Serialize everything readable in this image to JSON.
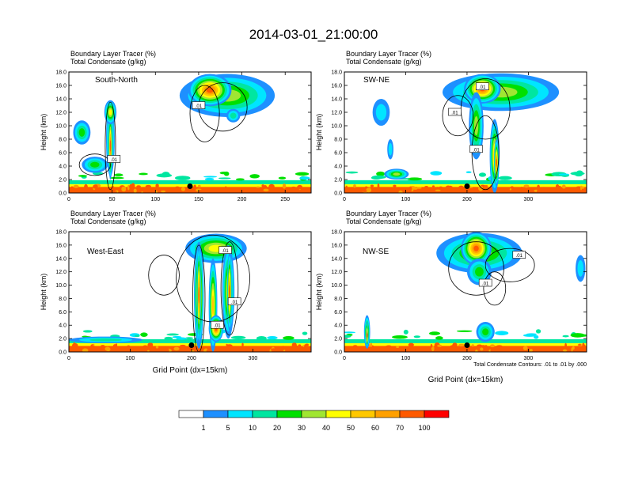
{
  "title": "2014-03-01_21:00:00",
  "legend": {
    "colors": [
      "#ffffff",
      "#1e90ff",
      "#00e5ff",
      "#00e6a0",
      "#00e000",
      "#a0e632",
      "#ffff00",
      "#ffc800",
      "#ffa000",
      "#ff5a00",
      "#ff0000"
    ],
    "labels": [
      "1",
      "5",
      "10",
      "20",
      "30",
      "40",
      "50",
      "60",
      "70",
      "100"
    ]
  },
  "contour_note": "Total Condensate Contours: .01 to .01 by .000",
  "chart_data": [
    {
      "type": "heatmap",
      "id": "south-north",
      "panel_title": "South-North",
      "header": [
        "Boundary Layer Tracer    (%)",
        "Total Condensate   (g/kg)"
      ],
      "ylabel": "Height (km)",
      "xlabel": "",
      "xlim": [
        0,
        280
      ],
      "ylim": [
        0,
        18
      ],
      "xticks": [
        0,
        50,
        100,
        150,
        200,
        250
      ],
      "yticks": [
        "0.0",
        "2.0",
        "4.0",
        "6.0",
        "8.0",
        "10.0",
        "12.0",
        "14.0",
        "16.0",
        "18.0"
      ],
      "contour_labels": [
        {
          "text": ".01",
          "x": 150,
          "y": 13
        },
        {
          "text": ".01",
          "x": 52,
          "y": 5
        }
      ],
      "marker": {
        "x": 140,
        "y": 1
      },
      "blobs": [
        {
          "x": 183,
          "y": 14.5,
          "rx": 55,
          "ry": 3.2,
          "v": 35
        },
        {
          "x": 163,
          "y": 15.3,
          "rx": 25,
          "ry": 2.4,
          "v": 75
        },
        {
          "x": 48,
          "y": 8,
          "rx": 5,
          "ry": 5.5,
          "v": 35
        },
        {
          "x": 48,
          "y": 7,
          "rx": 2.5,
          "ry": 5,
          "v": 85
        },
        {
          "x": 48,
          "y": 12,
          "rx": 7,
          "ry": 1.8,
          "v": 40
        },
        {
          "x": 15,
          "y": 9,
          "rx": 10,
          "ry": 1.8,
          "v": 25
        },
        {
          "x": 30,
          "y": 4.2,
          "rx": 15,
          "ry": 1.2,
          "v": 25
        },
        {
          "x": 190,
          "y": 11.5,
          "rx": 8,
          "ry": 1,
          "v": 12
        }
      ],
      "contours": [
        {
          "x": 178,
          "y": 12.8,
          "rx": 28,
          "ry": 3.6
        },
        {
          "x": 157,
          "y": 11.8,
          "rx": 17,
          "ry": 4.2
        },
        {
          "x": 48,
          "y": 7,
          "rx": 6,
          "ry": 6.5
        },
        {
          "x": 30,
          "y": 4.2,
          "rx": 18,
          "ry": 1.6
        }
      ]
    },
    {
      "type": "heatmap",
      "id": "sw-ne",
      "panel_title": "SW-NE",
      "header": [
        "Boundary Layer Tracer    (%)",
        "Total Condensate   (g/kg)"
      ],
      "ylabel": "Height (km)",
      "xlabel": "",
      "xlim": [
        0,
        395
      ],
      "ylim": [
        0,
        18
      ],
      "xticks": [
        0,
        100,
        200,
        300
      ],
      "yticks": [
        "0.0",
        "2.0",
        "4.0",
        "6.0",
        "8.0",
        "10.0",
        "12.0",
        "14.0",
        "16.0",
        "18.0"
      ],
      "contour_labels": [
        {
          "text": ".01",
          "x": 225,
          "y": 15.8
        },
        {
          "text": ".01",
          "x": 180,
          "y": 12
        },
        {
          "text": ".01",
          "x": 215,
          "y": 6.5
        }
      ],
      "marker": {
        "x": 200,
        "y": 1
      },
      "blobs": [
        {
          "x": 255,
          "y": 15,
          "rx": 95,
          "ry": 2.8,
          "v": 35
        },
        {
          "x": 225,
          "y": 15.5,
          "rx": 30,
          "ry": 2.2,
          "v": 80
        },
        {
          "x": 215,
          "y": 10,
          "rx": 12,
          "ry": 5,
          "v": 35
        },
        {
          "x": 245,
          "y": 5.5,
          "rx": 8,
          "ry": 5.5,
          "v": 50
        },
        {
          "x": 248,
          "y": 4.5,
          "rx": 4,
          "ry": 3.5,
          "v": 80
        },
        {
          "x": 60,
          "y": 12,
          "rx": 14,
          "ry": 2,
          "v": 8
        },
        {
          "x": 75,
          "y": 6.5,
          "rx": 5,
          "ry": 1.5,
          "v": 8
        },
        {
          "x": 85,
          "y": 2.8,
          "rx": 20,
          "ry": 0.8,
          "v": 30
        }
      ],
      "contours": [
        {
          "x": 230,
          "y": 12.5,
          "rx": 40,
          "ry": 4.5
        },
        {
          "x": 185,
          "y": 11.5,
          "rx": 25,
          "ry": 3
        },
        {
          "x": 230,
          "y": 6,
          "rx": 22,
          "ry": 5.5
        }
      ]
    },
    {
      "type": "heatmap",
      "id": "west-east",
      "panel_title": "West-East",
      "header": [
        "Boundary Layer Tracer    (%)",
        "Total Condensate   (g/kg)"
      ],
      "ylabel": "Height (km)",
      "xlabel": "Grid Point (dx=15km)",
      "xlim": [
        0,
        395
      ],
      "ylim": [
        0,
        18
      ],
      "xticks": [
        0,
        100,
        200,
        300
      ],
      "yticks": [
        "0.0",
        "2.0",
        "4.0",
        "6.0",
        "8.0",
        "10.0",
        "12.0",
        "14.0",
        "16.0",
        "18.0"
      ],
      "contour_labels": [
        {
          "text": ".01",
          "x": 255,
          "y": 15.2
        },
        {
          "text": ".01",
          "x": 270,
          "y": 7.5
        },
        {
          "text": ".01",
          "x": 242,
          "y": 4
        }
      ],
      "marker": {
        "x": 200,
        "y": 1
      },
      "blobs": [
        {
          "x": 240,
          "y": 15.5,
          "rx": 50,
          "ry": 2.2,
          "v": 40
        },
        {
          "x": 212,
          "y": 8.5,
          "rx": 8,
          "ry": 8,
          "v": 60
        },
        {
          "x": 212,
          "y": 8.5,
          "rx": 3.5,
          "ry": 7.5,
          "v": 95
        },
        {
          "x": 235,
          "y": 7,
          "rx": 7,
          "ry": 7,
          "v": 55
        },
        {
          "x": 260,
          "y": 9,
          "rx": 10,
          "ry": 7,
          "v": 45
        },
        {
          "x": 262,
          "y": 9,
          "rx": 4,
          "ry": 6,
          "v": 80
        },
        {
          "x": 240,
          "y": 3.5,
          "rx": 12,
          "ry": 2,
          "v": 85
        },
        {
          "x": 60,
          "y": 1.8,
          "rx": 60,
          "ry": 0.5,
          "v": 15
        }
      ],
      "contours": [
        {
          "x": 235,
          "y": 11,
          "rx": 60,
          "ry": 6.5
        },
        {
          "x": 212,
          "y": 8,
          "rx": 10,
          "ry": 8
        },
        {
          "x": 262,
          "y": 9.5,
          "rx": 14,
          "ry": 7
        },
        {
          "x": 155,
          "y": 11.5,
          "rx": 25,
          "ry": 3
        }
      ]
    },
    {
      "type": "heatmap",
      "id": "nw-se",
      "panel_title": "NW-SE",
      "header": [
        "Boundary Layer Tracer    (%)",
        "Total Condensate   (g/kg)"
      ],
      "ylabel": "Height (km)",
      "xlabel": "Grid Point (dx=15km)",
      "xlim": [
        0,
        395
      ],
      "ylim": [
        0,
        18
      ],
      "xticks": [
        0,
        100,
        200,
        300
      ],
      "yticks": [
        "0.0",
        "2.0",
        "4.0",
        "6.0",
        "8.0",
        "10.0",
        "12.0",
        "14.0",
        "16.0",
        "18.0"
      ],
      "contour_labels": [
        {
          "text": ".01",
          "x": 285,
          "y": 14.5
        },
        {
          "text": ".01",
          "x": 230,
          "y": 10.3
        }
      ],
      "marker": {
        "x": 200,
        "y": 1
      },
      "blobs": [
        {
          "x": 220,
          "y": 14.8,
          "rx": 70,
          "ry": 3,
          "v": 35
        },
        {
          "x": 215,
          "y": 15.5,
          "rx": 25,
          "ry": 2.5,
          "v": 80
        },
        {
          "x": 220,
          "y": 12,
          "rx": 20,
          "ry": 2,
          "v": 25
        },
        {
          "x": 385,
          "y": 12.5,
          "rx": 8,
          "ry": 2,
          "v": 8
        },
        {
          "x": 37,
          "y": 3,
          "rx": 5,
          "ry": 2.5,
          "v": 45
        },
        {
          "x": 37,
          "y": 2.5,
          "rx": 2,
          "ry": 2,
          "v": 80
        },
        {
          "x": 230,
          "y": 3,
          "rx": 15,
          "ry": 1.5,
          "v": 25
        }
      ],
      "contours": [
        {
          "x": 215,
          "y": 12.5,
          "rx": 45,
          "ry": 4
        },
        {
          "x": 270,
          "y": 13,
          "rx": 40,
          "ry": 2.5
        },
        {
          "x": 245,
          "y": 9.5,
          "rx": 18,
          "ry": 2.5
        }
      ]
    }
  ]
}
